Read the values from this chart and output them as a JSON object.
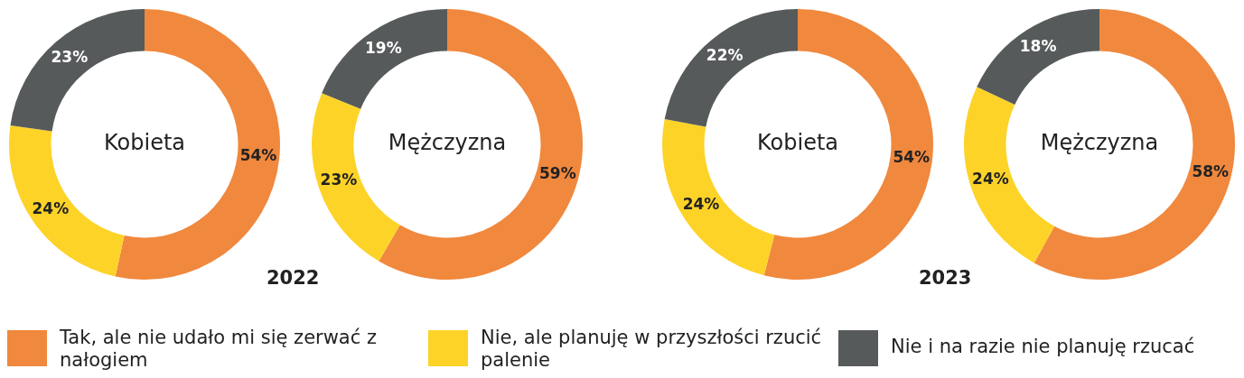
{
  "chart_data": [
    {
      "type": "donut",
      "title": "Kobieta",
      "categories": [
        "Tak, ale nie udało mi się zerwać z nałogiem",
        "Nie, ale planuję w przyszłości rzucić palenie",
        "Nie i na razie nie planuję rzucać"
      ],
      "values": [
        54,
        24,
        23
      ],
      "colors": [
        "#f0883e",
        "#fdd328",
        "#565a5a"
      ],
      "value_labels": [
        "54%",
        "24%",
        "23%"
      ],
      "legend": "bottom"
    },
    {
      "type": "donut",
      "title": "Mężczyzna",
      "categories": [
        null,
        null,
        null
      ],
      "values": [
        59,
        23,
        19
      ],
      "colors": [
        "#f0883e",
        "#fdd328",
        "#565a5a"
      ],
      "value_labels": [
        "59%",
        "23%",
        "19%"
      ],
      "annotations": [
        "2022"
      ]
    },
    {
      "type": "donut",
      "title": "Kobieta",
      "categories": [
        null,
        null,
        null
      ],
      "values": [
        54,
        24,
        22
      ],
      "colors": [
        "#f0883e",
        "#fdd328",
        "#565a5a"
      ],
      "value_labels": [
        "54%",
        "24%",
        "22%"
      ]
    },
    {
      "type": "donut",
      "title": "Mężczyzna",
      "categories": [
        null,
        null,
        null
      ],
      "values": [
        58,
        24,
        18
      ],
      "colors": [
        "#f0883e",
        "#fdd328",
        "#565a5a"
      ],
      "value_labels": [
        "58%",
        "24%",
        "18%"
      ],
      "annotations": [
        "2023"
      ]
    }
  ]
}
